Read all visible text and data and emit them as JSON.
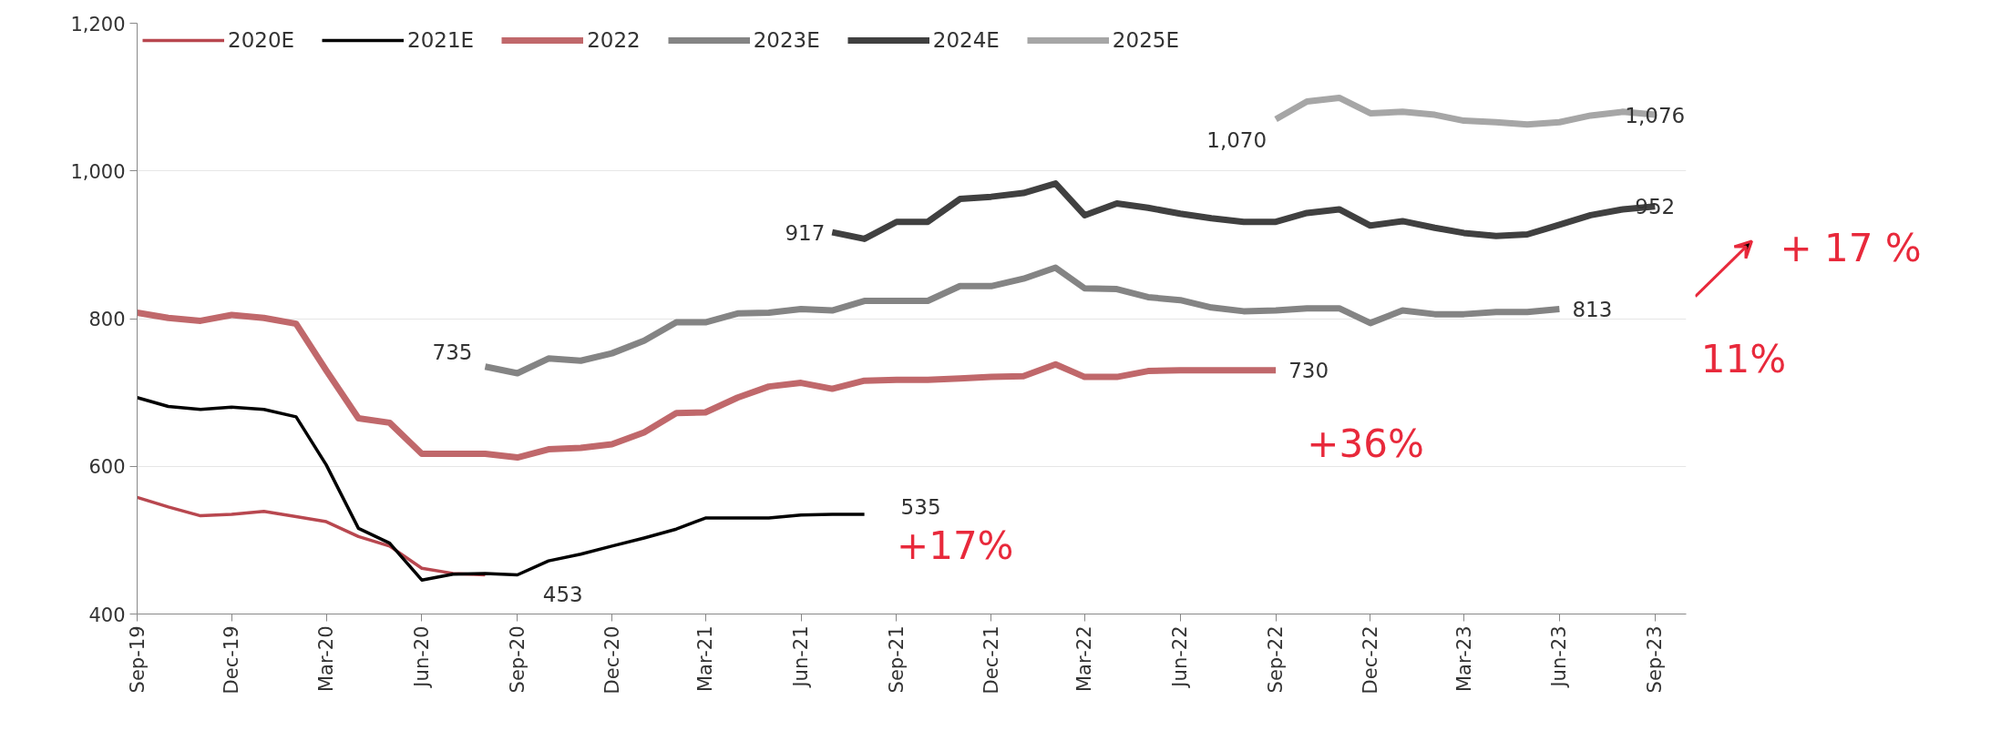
{
  "chart_data": {
    "type": "line",
    "x": [
      "2019-09",
      "2019-10",
      "2019-11",
      "2019-12",
      "2020-01",
      "2020-02",
      "2020-03",
      "2020-04",
      "2020-05",
      "2020-06",
      "2020-07",
      "2020-08",
      "2020-09",
      "2020-10",
      "2020-11",
      "2020-12",
      "2021-01",
      "2021-02",
      "2021-03",
      "2021-04",
      "2021-05",
      "2021-06",
      "2021-07",
      "2021-08",
      "2021-09",
      "2021-10",
      "2021-11",
      "2021-12",
      "2022-01",
      "2022-02",
      "2022-03",
      "2022-04",
      "2022-05",
      "2022-06",
      "2022-07",
      "2022-08",
      "2022-09",
      "2022-10",
      "2022-11",
      "2022-12",
      "2023-01",
      "2023-02",
      "2023-03",
      "2023-04",
      "2023-05",
      "2023-06",
      "2023-07",
      "2023-08",
      "2023-09"
    ],
    "series": [
      {
        "name": "2020E",
        "color": "#b8474f",
        "values": [
          558,
          545,
          533,
          535,
          539,
          532,
          525,
          505,
          492,
          462,
          455,
          453,
          null,
          null,
          null,
          null,
          null,
          null,
          null,
          null,
          null,
          null,
          null,
          null,
          null,
          null,
          null,
          null,
          null,
          null,
          null,
          null,
          null,
          null,
          null,
          null,
          null,
          null,
          null,
          null,
          null,
          null,
          null,
          null,
          null,
          null,
          null,
          null,
          null
        ]
      },
      {
        "name": "2021E",
        "color": "#000000",
        "values": [
          693,
          681,
          677,
          680,
          677,
          667,
          602,
          516,
          496,
          446,
          454,
          455,
          453,
          472,
          481,
          492,
          503,
          515,
          530,
          530,
          530,
          534,
          535,
          535,
          null,
          null,
          null,
          null,
          null,
          null,
          null,
          null,
          null,
          null,
          null,
          null,
          null,
          null,
          null,
          null,
          null,
          null,
          null,
          null,
          null,
          null,
          null,
          null,
          null
        ],
        "value_labels": [
          null,
          null,
          null,
          null,
          null,
          null,
          null,
          null,
          null,
          null,
          null,
          null,
          "453",
          null,
          null,
          null,
          null,
          null,
          null,
          null,
          null,
          null,
          null,
          "535",
          null,
          null,
          null,
          null,
          null,
          null,
          null,
          null,
          null,
          null,
          null,
          null,
          null,
          null,
          null,
          null,
          null,
          null,
          null,
          null,
          null,
          null,
          null,
          null,
          null
        ]
      },
      {
        "name": "2022",
        "color": "#c0686b",
        "values": [
          808,
          801,
          797,
          805,
          801,
          793,
          730,
          665,
          659,
          617,
          617,
          617,
          612,
          623,
          625,
          630,
          646,
          672,
          673,
          693,
          708,
          713,
          705,
          716,
          717,
          717,
          719,
          721,
          722,
          738,
          721,
          721,
          729,
          730,
          730,
          730,
          730,
          null,
          null,
          null,
          null,
          null,
          null,
          null,
          null,
          null,
          null,
          null,
          null
        ],
        "value_labels": [
          null,
          null,
          null,
          null,
          null,
          null,
          null,
          null,
          null,
          null,
          null,
          null,
          null,
          null,
          null,
          null,
          null,
          null,
          null,
          null,
          null,
          null,
          null,
          null,
          null,
          null,
          null,
          null,
          null,
          null,
          null,
          null,
          null,
          null,
          null,
          null,
          "730",
          null,
          null,
          null,
          null,
          null,
          null,
          null,
          null,
          null,
          null,
          null,
          null
        ]
      },
      {
        "name": "2023E",
        "color": "#848484",
        "values": [
          null,
          null,
          null,
          null,
          null,
          null,
          null,
          null,
          null,
          null,
          null,
          735,
          726,
          746,
          743,
          753,
          770,
          795,
          795,
          807,
          808,
          813,
          811,
          824,
          824,
          824,
          844,
          844,
          854,
          869,
          841,
          840,
          829,
          825,
          815,
          810,
          811,
          814,
          814,
          794,
          811,
          806,
          806,
          809,
          809,
          813,
          null,
          null,
          null
        ],
        "value_labels": [
          null,
          null,
          null,
          null,
          null,
          null,
          null,
          null,
          null,
          null,
          null,
          "735",
          null,
          null,
          null,
          null,
          null,
          null,
          null,
          null,
          null,
          null,
          null,
          null,
          null,
          null,
          null,
          null,
          null,
          null,
          null,
          null,
          null,
          null,
          null,
          null,
          null,
          null,
          null,
          null,
          null,
          null,
          null,
          null,
          null,
          "813",
          null,
          null,
          null
        ]
      },
      {
        "name": "2024E",
        "color": "#404040",
        "values": [
          null,
          null,
          null,
          null,
          null,
          null,
          null,
          null,
          null,
          null,
          null,
          null,
          null,
          null,
          null,
          null,
          null,
          null,
          null,
          null,
          null,
          null,
          917,
          908,
          931,
          931,
          962,
          965,
          970,
          983,
          940,
          956,
          950,
          942,
          936,
          931,
          931,
          943,
          948,
          926,
          932,
          923,
          916,
          912,
          914,
          927,
          940,
          948,
          952
        ],
        "value_labels": [
          null,
          null,
          null,
          null,
          null,
          null,
          null,
          null,
          null,
          null,
          null,
          null,
          null,
          null,
          null,
          null,
          null,
          null,
          null,
          null,
          null,
          null,
          "917",
          null,
          null,
          null,
          null,
          null,
          null,
          null,
          null,
          null,
          null,
          null,
          null,
          null,
          null,
          null,
          null,
          null,
          null,
          null,
          null,
          null,
          null,
          null,
          null,
          null,
          "952"
        ]
      },
      {
        "name": "2025E",
        "color": "#a6a6a6",
        "values": [
          null,
          null,
          null,
          null,
          null,
          null,
          null,
          null,
          null,
          null,
          null,
          null,
          null,
          null,
          null,
          null,
          null,
          null,
          null,
          null,
          null,
          null,
          null,
          null,
          null,
          null,
          null,
          null,
          null,
          null,
          null,
          null,
          null,
          null,
          null,
          null,
          1070,
          1094,
          1099,
          1078,
          1080,
          1076,
          1068,
          1066,
          1063,
          1066,
          1075,
          1080,
          1076
        ],
        "value_labels": [
          null,
          null,
          null,
          null,
          null,
          null,
          null,
          null,
          null,
          null,
          null,
          null,
          null,
          null,
          null,
          null,
          null,
          null,
          null,
          null,
          null,
          null,
          null,
          null,
          null,
          null,
          null,
          null,
          null,
          null,
          null,
          null,
          null,
          null,
          null,
          null,
          "1,070",
          null,
          null,
          null,
          null,
          null,
          null,
          null,
          null,
          null,
          null,
          null,
          "1,076"
        ]
      }
    ],
    "xlim": [
      "2019-09",
      "2023-10"
    ],
    "xticks": [
      {
        "value": "2019-09",
        "label": "Sep-19"
      },
      {
        "value": "2019-12",
        "label": "Dec-19"
      },
      {
        "value": "2020-03",
        "label": "Mar-20"
      },
      {
        "value": "2020-06",
        "label": "Jun-20"
      },
      {
        "value": "2020-09",
        "label": "Sep-20"
      },
      {
        "value": "2020-12",
        "label": "Dec-20"
      },
      {
        "value": "2021-03",
        "label": "Mar-21"
      },
      {
        "value": "2021-06",
        "label": "Jun-21"
      },
      {
        "value": "2021-09",
        "label": "Sep-21"
      },
      {
        "value": "2021-12",
        "label": "Dec-21"
      },
      {
        "value": "2022-03",
        "label": "Mar-22"
      },
      {
        "value": "2022-06",
        "label": "Jun-22"
      },
      {
        "value": "2022-09",
        "label": "Sep-22"
      },
      {
        "value": "2022-12",
        "label": "Dec-22"
      },
      {
        "value": "2023-03",
        "label": "Mar-23"
      },
      {
        "value": "2023-06",
        "label": "Jun-23"
      },
      {
        "value": "2023-09",
        "label": "Sep-23"
      }
    ],
    "ylim": [
      400,
      1200
    ],
    "yticks": [
      {
        "value": 400,
        "label": "400"
      },
      {
        "value": 600,
        "label": "600"
      },
      {
        "value": 800,
        "label": "800"
      },
      {
        "value": 1000,
        "label": "1,000"
      },
      {
        "value": 1200,
        "label": "1,200"
      }
    ],
    "annotations": [
      "+17%",
      "+36%",
      "11%",
      "+ 17 %"
    ],
    "grid": "y",
    "legend": "top",
    "line_style": "solid",
    "marker": "none"
  }
}
